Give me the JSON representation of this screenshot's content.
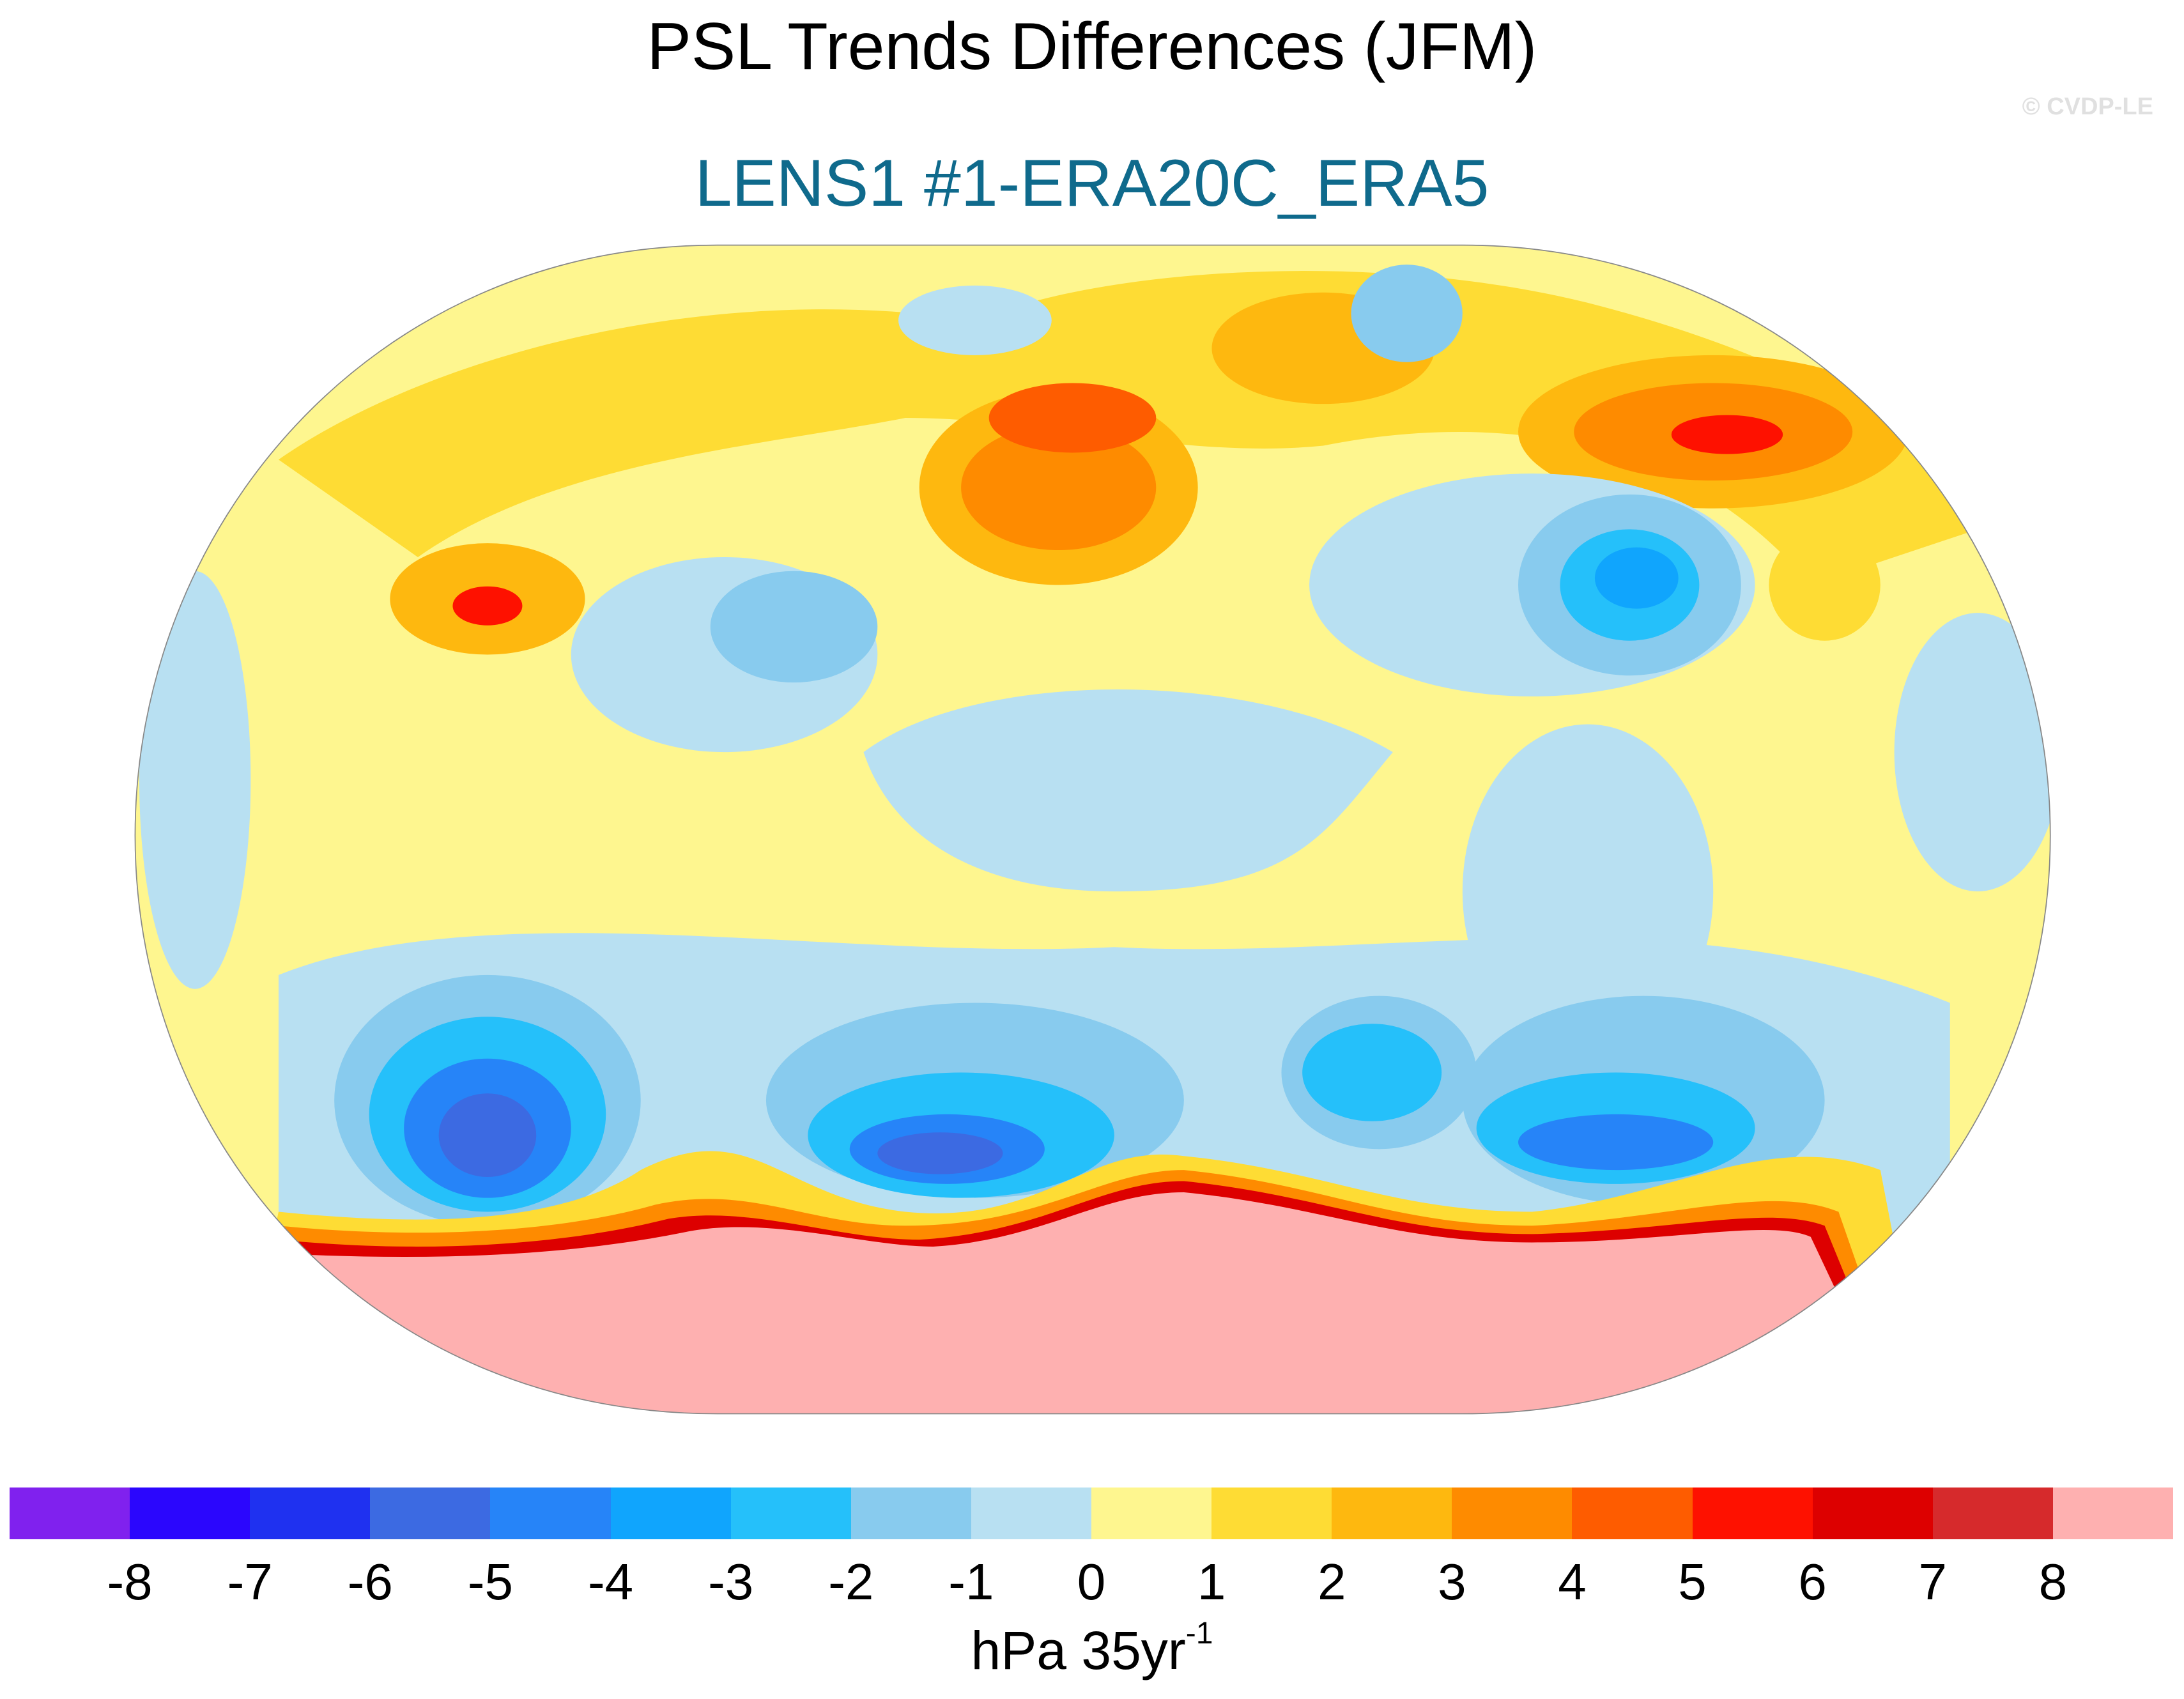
{
  "title": "PSL Trends Differences (JFM)",
  "subtitle": "LENS1 #1-ERA20C_ERA5",
  "copyright": "© CVDP-LE",
  "colorbar": {
    "colors": [
      "#8021ee",
      "#2b06fd",
      "#1f31f0",
      "#3c6ae2",
      "#2684f8",
      "#10a5fd",
      "#25c0fa",
      "#88cbee",
      "#b8e0f2",
      "#fef68f",
      "#fedc34",
      "#feb80f",
      "#fe8b00",
      "#fe5c00",
      "#fe1100",
      "#dd0000",
      "#d62a2c",
      "#feb0b0"
    ],
    "labels": [
      "-8",
      "-7",
      "-6",
      "-5",
      "-4",
      "-3",
      "-2",
      "-1",
      "0",
      "1",
      "2",
      "3",
      "4",
      "5",
      "6",
      "7",
      "8"
    ],
    "unit": "hPa 35yr",
    "unit_exponent": "-1"
  }
}
